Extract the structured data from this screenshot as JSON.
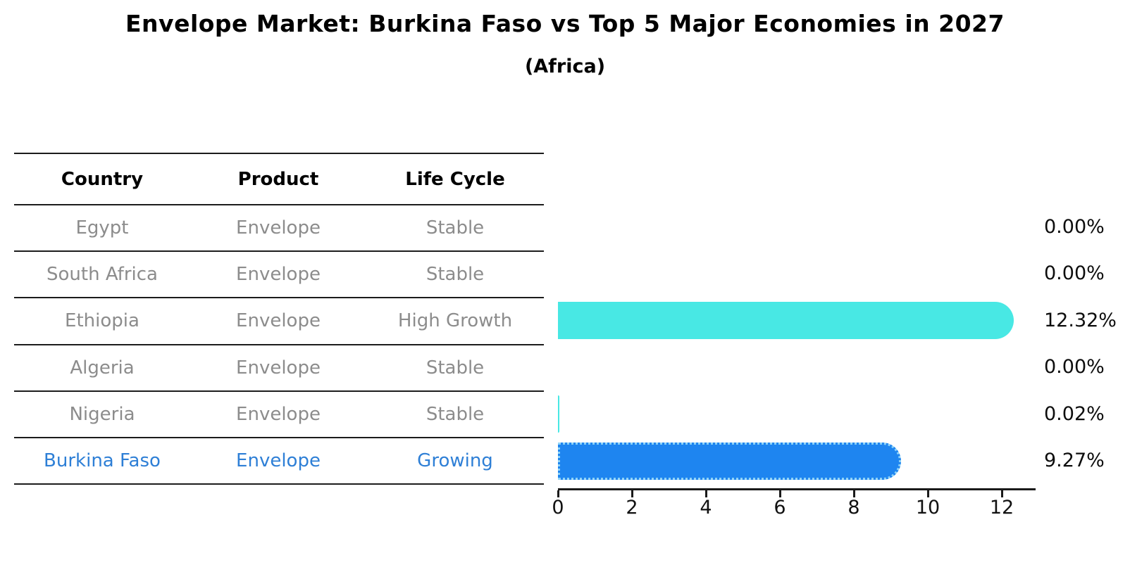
{
  "page": {
    "title": "Envelope Market: Burkina Faso vs Top 5 Major Economies in 2027",
    "subtitle": "(Africa)"
  },
  "table": {
    "headers": [
      "Country",
      "Product",
      "Life Cycle"
    ],
    "rows": [
      {
        "country": "Egypt",
        "product": "Envelope",
        "life_cycle": "Stable",
        "highlight": false
      },
      {
        "country": "South Africa",
        "product": "Envelope",
        "life_cycle": "Stable",
        "highlight": false
      },
      {
        "country": "Ethiopia",
        "product": "Envelope",
        "life_cycle": "High Growth",
        "highlight": false
      },
      {
        "country": "Algeria",
        "product": "Envelope",
        "life_cycle": "Stable",
        "highlight": false
      },
      {
        "country": "Nigeria",
        "product": "Envelope",
        "life_cycle": "Stable",
        "highlight": false
      },
      {
        "country": "Burkina Faso",
        "product": "Envelope",
        "life_cycle": "Growing",
        "highlight": true
      }
    ]
  },
  "chart_data": {
    "type": "bar",
    "orientation": "horizontal",
    "title": "Envelope Market: Burkina Faso vs Top 5 Major Economies in 2027",
    "subtitle": "(Africa)",
    "categories": [
      "Egypt",
      "South Africa",
      "Ethiopia",
      "Algeria",
      "Nigeria",
      "Burkina Faso"
    ],
    "values": [
      0.0,
      0.0,
      12.32,
      0.0,
      0.02,
      9.27
    ],
    "value_labels": [
      "0.00%",
      "0.00%",
      "12.32%",
      "0.00%",
      "0.02%",
      "9.27%"
    ],
    "x_ticks": [
      0,
      2,
      4,
      6,
      8,
      10,
      12
    ],
    "xlim": [
      0,
      12.9
    ],
    "grid": false,
    "legend": null,
    "highlight_index": 5,
    "colors": {
      "default_bar": "#48E8E4",
      "highlight_bar": "#1E85F0",
      "highlight_border": "#8FD4F8",
      "highlight_text": "#2E7FD6",
      "table_text": "#8c8c8c",
      "axis": "#1a1a1a"
    }
  }
}
